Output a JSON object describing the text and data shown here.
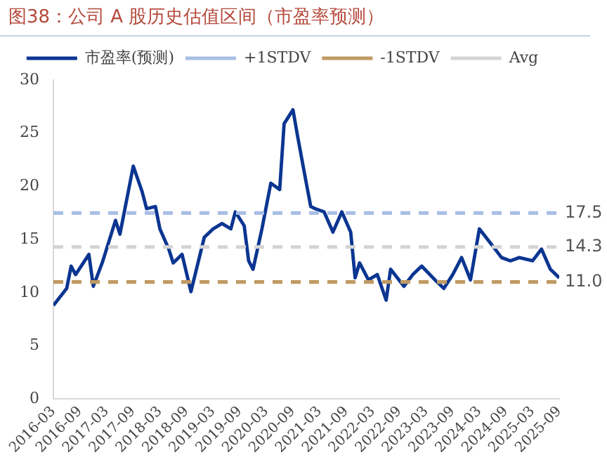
{
  "chart_data": {
    "type": "line",
    "title": "图38：公司 A 股历史估值区间（市盈率预测）",
    "xlim": [
      "2016-03",
      "2025-09"
    ],
    "xticks": [
      "2016-03",
      "2016-09",
      "2017-03",
      "2017-09",
      "2018-03",
      "2018-09",
      "2019-03",
      "2019-09",
      "2020-03",
      "2020-09",
      "2021-03",
      "2021-09",
      "2022-03",
      "2022-09",
      "2023-03",
      "2023-09",
      "2024-03",
      "2024-09",
      "2025-03",
      "2025-09"
    ],
    "ylim": [
      0,
      30
    ],
    "yticks": [
      0,
      5,
      10,
      15,
      20,
      25,
      30
    ],
    "grid": false,
    "legend": "top",
    "marker": "none",
    "series": [
      {
        "name": "市盈率(预测)",
        "color": "#0b3591",
        "line_style": "solid",
        "x": [
          "2016-03",
          "2016-06",
          "2016-07",
          "2016-08",
          "2016-11",
          "2016-12",
          "2017-02",
          "2017-05",
          "2017-06",
          "2017-09",
          "2017-11",
          "2017-12",
          "2018-02",
          "2018-03",
          "2018-05",
          "2018-06",
          "2018-08",
          "2018-10",
          "2019-01",
          "2019-03",
          "2019-05",
          "2019-07",
          "2019-08",
          "2019-10",
          "2019-11",
          "2019-12",
          "2020-02",
          "2020-04",
          "2020-06",
          "2020-07",
          "2020-09",
          "2020-10",
          "2020-12",
          "2021-01",
          "2021-02",
          "2021-04",
          "2021-06",
          "2021-08",
          "2021-10",
          "2021-11",
          "2021-12",
          "2022-02",
          "2022-04",
          "2022-06",
          "2022-07",
          "2022-10",
          "2022-12",
          "2023-02",
          "2023-05",
          "2023-07",
          "2023-09",
          "2023-11",
          "2024-01",
          "2024-03",
          "2024-06",
          "2024-08",
          "2024-10",
          "2024-12",
          "2025-03",
          "2025-05",
          "2025-07",
          "2025-09"
        ],
        "values": [
          8.8,
          10.4,
          12.5,
          11.7,
          13.6,
          10.6,
          12.8,
          16.8,
          15.5,
          21.9,
          19.5,
          17.9,
          18.1,
          16.0,
          14.1,
          12.8,
          13.6,
          10.1,
          15.2,
          16.0,
          16.5,
          16.0,
          17.6,
          16.3,
          13.0,
          12.2,
          16.0,
          20.3,
          19.7,
          25.9,
          27.2,
          24.8,
          20.3,
          18.1,
          17.9,
          17.6,
          15.7,
          17.6,
          15.7,
          11.4,
          12.8,
          11.2,
          11.7,
          9.3,
          12.2,
          10.6,
          11.7,
          12.5,
          11.2,
          10.4,
          11.7,
          13.3,
          11.2,
          16.0,
          14.4,
          13.3,
          13.0,
          13.3,
          13.0,
          14.1,
          12.2,
          11.4
        ]
      },
      {
        "name": "+1STDV",
        "color": "#a9bee5",
        "line_style": "dashed",
        "x": [
          "2016-03",
          "2025-09"
        ],
        "values": [
          17.5,
          17.5
        ],
        "value_labels": [
          null,
          "17.5"
        ]
      },
      {
        "name": "-1STDV",
        "color": "#bf9a62",
        "line_style": "dashed",
        "x": [
          "2016-03",
          "2025-09"
        ],
        "values": [
          11.0,
          11.0
        ],
        "value_labels": [
          null,
          "11.0"
        ]
      },
      {
        "name": "Avg",
        "color": "#d4d4d4",
        "line_style": "dashed",
        "x": [
          "2016-03",
          "2025-09"
        ],
        "values": [
          14.3,
          14.3
        ],
        "value_labels": [
          null,
          "14.3"
        ]
      }
    ]
  }
}
